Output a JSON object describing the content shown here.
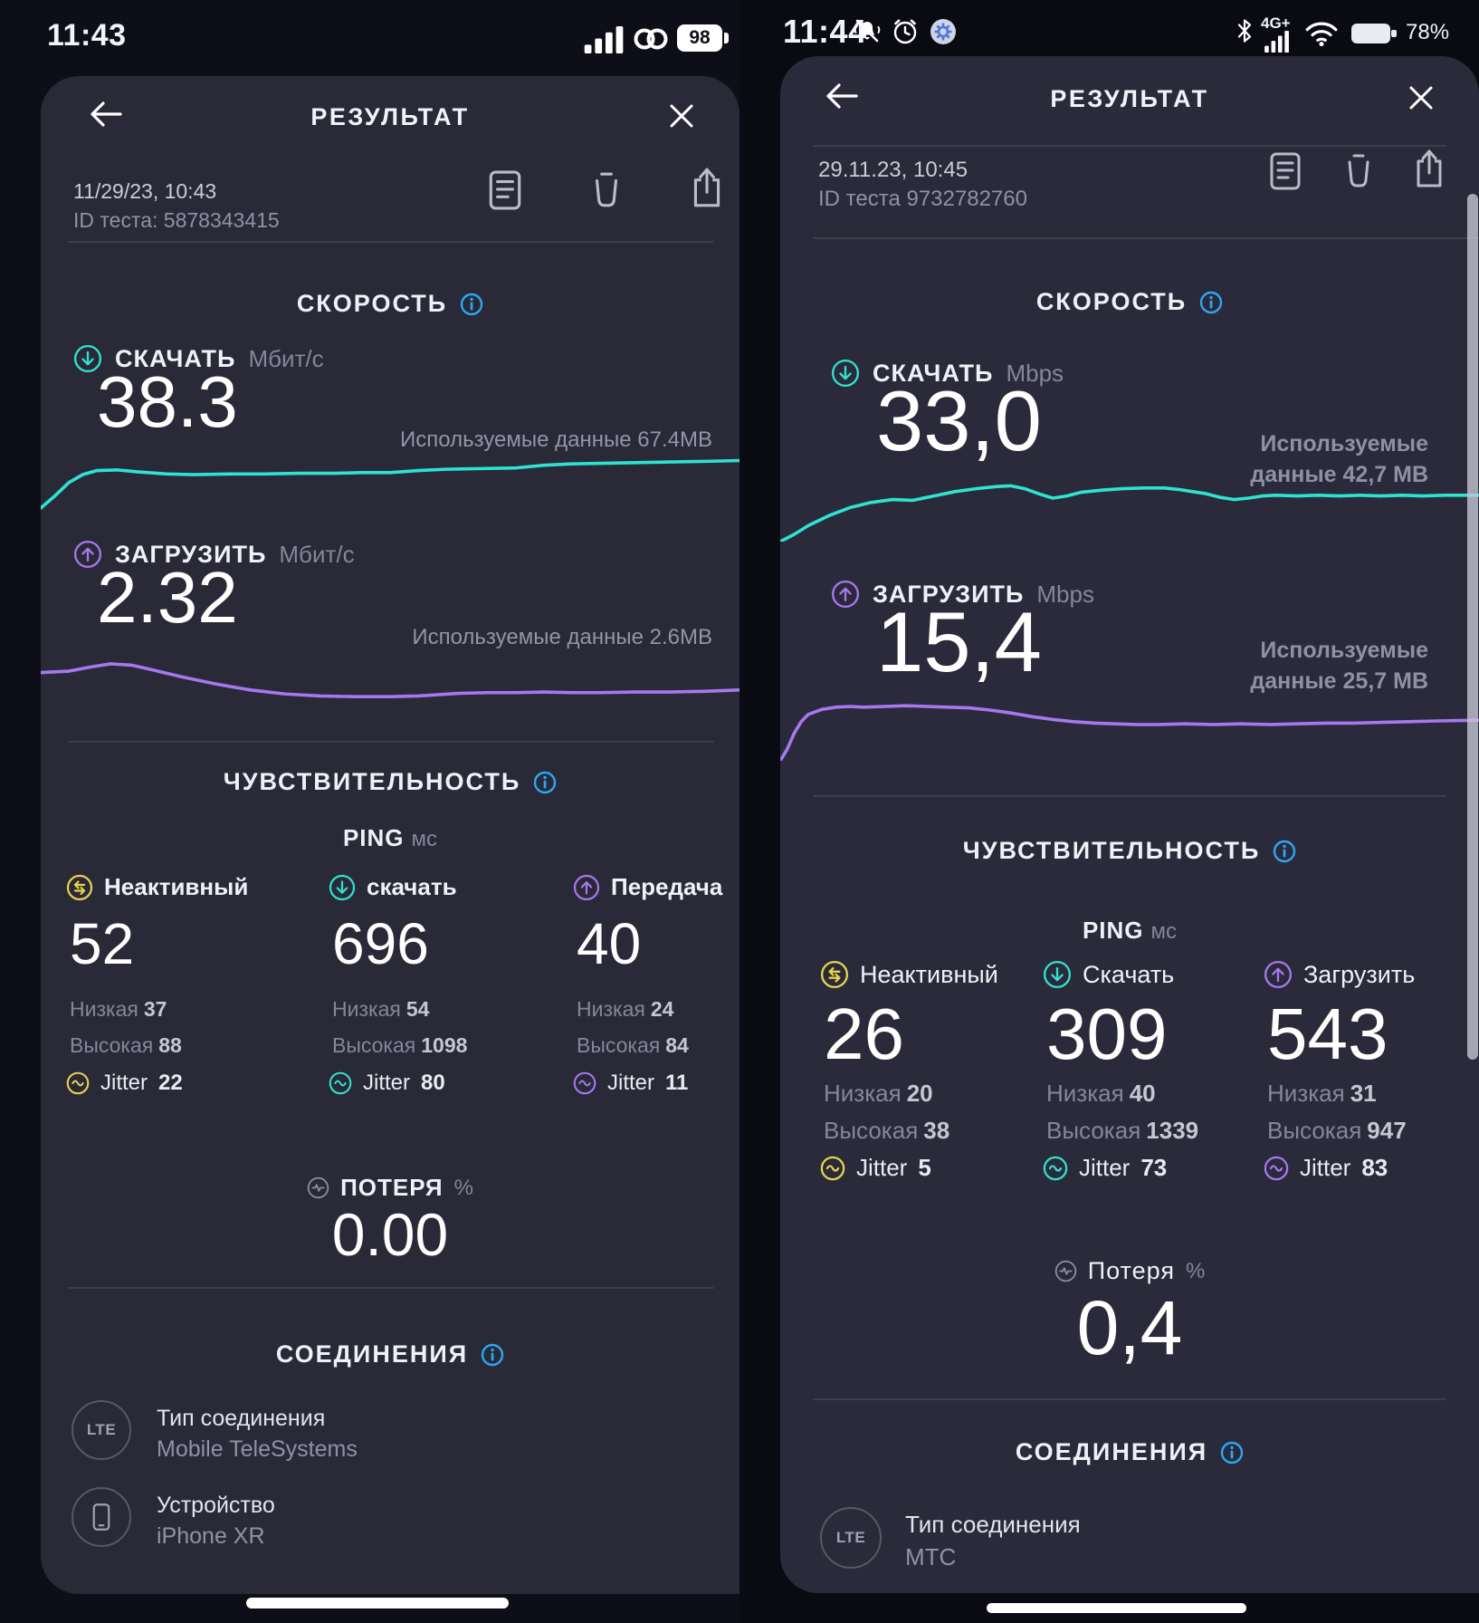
{
  "theme": {
    "teal": "#2ee3cf",
    "purple": "#a678ee",
    "yellow": "#e8d44d",
    "info_blue": "#2ba7f2",
    "card_bg_left": "#2a2938",
    "card_bg_right": "#2b2a3a"
  },
  "left": {
    "status": {
      "time": "11:43",
      "battery": "98"
    },
    "header": {
      "title": "РЕЗУЛЬТАТ"
    },
    "meta": {
      "date": "11/29/23, 10:43",
      "test_id": "ID теста: 5878343415"
    },
    "speed": {
      "title": "СКОРОСТЬ",
      "download": {
        "label": "СКАЧАТЬ",
        "unit": "Мбит/с",
        "value": "38.3",
        "used": "Используемые данные 67.4MB",
        "points": [
          [
            0,
            96
          ],
          [
            2,
            78
          ],
          [
            4,
            58
          ],
          [
            6,
            46
          ],
          [
            8,
            40
          ],
          [
            11,
            39
          ],
          [
            14,
            42
          ],
          [
            18,
            45
          ],
          [
            22,
            46
          ],
          [
            27,
            45
          ],
          [
            32,
            45
          ],
          [
            37,
            44
          ],
          [
            42,
            44
          ],
          [
            46,
            43
          ],
          [
            50,
            43
          ],
          [
            54,
            40
          ],
          [
            58,
            38
          ],
          [
            63,
            37
          ],
          [
            68,
            36
          ],
          [
            72,
            32
          ],
          [
            76,
            30
          ],
          [
            81,
            29
          ],
          [
            86,
            28
          ],
          [
            91,
            27
          ],
          [
            96,
            26
          ],
          [
            100,
            25
          ]
        ]
      },
      "upload": {
        "label": "ЗАГРУЗИТЬ",
        "unit": "Мбит/с",
        "value": "2.32",
        "used": "Используемые данные 2.6MB",
        "points": [
          [
            0,
            44
          ],
          [
            4,
            42
          ],
          [
            7,
            36
          ],
          [
            10,
            31
          ],
          [
            13,
            33
          ],
          [
            16,
            40
          ],
          [
            20,
            50
          ],
          [
            25,
            61
          ],
          [
            30,
            70
          ],
          [
            35,
            76
          ],
          [
            40,
            79
          ],
          [
            45,
            80
          ],
          [
            50,
            80
          ],
          [
            54,
            79
          ],
          [
            57,
            77
          ],
          [
            60,
            75
          ],
          [
            64,
            74
          ],
          [
            68,
            74
          ],
          [
            72,
            73
          ],
          [
            76,
            74
          ],
          [
            80,
            74
          ],
          [
            85,
            73
          ],
          [
            90,
            73
          ],
          [
            95,
            72
          ],
          [
            100,
            70
          ]
        ]
      }
    },
    "ping": {
      "title": "ЧУВСТВИТЕЛЬНОСТЬ",
      "label": "PING",
      "unit": "мс",
      "cols": [
        {
          "label": "Неактивный",
          "value": "52",
          "low_label": "Низкая",
          "low": "37",
          "high_label": "Высокая",
          "high": "88",
          "jitter_label": "Jitter",
          "jitter": "22"
        },
        {
          "label": "скачать",
          "value": "696",
          "low_label": "Низкая",
          "low": "54",
          "high_label": "Высокая",
          "high": "1098",
          "jitter_label": "Jitter",
          "jitter": "80"
        },
        {
          "label": "Передача",
          "value": "40",
          "low_label": "Низкая",
          "low": "24",
          "high_label": "Высокая",
          "high": "84",
          "jitter_label": "Jitter",
          "jitter": "11"
        }
      ]
    },
    "loss": {
      "label": "ПОТЕРЯ",
      "unit": "%",
      "value": "0.00"
    },
    "connections": {
      "title": "СОЕДИНЕНИЯ",
      "rows": [
        {
          "badge": "LTE",
          "label": "Тип соединения",
          "value": "Mobile TeleSystems"
        },
        {
          "badge": "device",
          "label": "Устройство",
          "value": "iPhone XR"
        }
      ]
    }
  },
  "right": {
    "status": {
      "time": "11:44",
      "network": "4G+",
      "battery": "78%"
    },
    "header": {
      "title": "РЕЗУЛЬТАТ"
    },
    "meta": {
      "date": "29.11.23, 10:45",
      "test_id": "ID теста 9732782760"
    },
    "speed": {
      "title": "СКОРОСТЬ",
      "download": {
        "label": "СКАЧАТЬ",
        "unit": "Mbps",
        "value": "33,0",
        "used_line1": "Используемые",
        "used_line2": "данные 42,7 МВ",
        "points": [
          [
            0,
            100
          ],
          [
            2,
            90
          ],
          [
            4,
            78
          ],
          [
            7,
            64
          ],
          [
            10,
            53
          ],
          [
            13,
            46
          ],
          [
            16,
            42
          ],
          [
            19,
            43
          ],
          [
            22,
            37
          ],
          [
            25,
            31
          ],
          [
            28,
            27
          ],
          [
            31,
            24
          ],
          [
            33,
            23
          ],
          [
            35,
            27
          ],
          [
            37,
            34
          ],
          [
            39,
            40
          ],
          [
            41,
            37
          ],
          [
            43,
            32
          ],
          [
            46,
            29
          ],
          [
            49,
            27
          ],
          [
            52,
            26
          ],
          [
            55,
            26
          ],
          [
            57,
            28
          ],
          [
            59,
            31
          ],
          [
            61,
            34
          ],
          [
            63,
            39
          ],
          [
            65,
            42
          ],
          [
            67,
            40
          ],
          [
            69,
            37
          ],
          [
            71,
            36
          ],
          [
            74,
            37
          ],
          [
            77,
            36
          ],
          [
            80,
            37
          ],
          [
            83,
            36
          ],
          [
            86,
            37
          ],
          [
            89,
            36
          ],
          [
            92,
            37
          ],
          [
            95,
            36
          ],
          [
            100,
            36
          ]
        ]
      },
      "upload": {
        "label": "ЗАГРУЗИТЬ",
        "unit": "Mbps",
        "value": "15,4",
        "used_line1": "Используемые",
        "used_line2": "данные 25,7 МВ",
        "points": [
          [
            0,
            100
          ],
          [
            1,
            84
          ],
          [
            2,
            62
          ],
          [
            3,
            46
          ],
          [
            4,
            36
          ],
          [
            6,
            29
          ],
          [
            8,
            26
          ],
          [
            10,
            25
          ],
          [
            12,
            26
          ],
          [
            15,
            25
          ],
          [
            18,
            24
          ],
          [
            21,
            25
          ],
          [
            24,
            26
          ],
          [
            27,
            27
          ],
          [
            30,
            30
          ],
          [
            33,
            34
          ],
          [
            36,
            39
          ],
          [
            39,
            43
          ],
          [
            42,
            46
          ],
          [
            45,
            48
          ],
          [
            48,
            49
          ],
          [
            51,
            50
          ],
          [
            54,
            50
          ],
          [
            58,
            49
          ],
          [
            62,
            50
          ],
          [
            66,
            49
          ],
          [
            70,
            50
          ],
          [
            74,
            49
          ],
          [
            78,
            48
          ],
          [
            82,
            48
          ],
          [
            86,
            47
          ],
          [
            90,
            46
          ],
          [
            94,
            45
          ],
          [
            100,
            44
          ]
        ]
      }
    },
    "ping": {
      "title": "ЧУВСТВИТЕЛЬНОСТЬ",
      "label": "PING",
      "unit": "мс",
      "cols": [
        {
          "label": "Неактивный",
          "value": "26",
          "low_label": "Низкая",
          "low": "20",
          "high_label": "Высокая",
          "high": "38",
          "jitter_label": "Jitter",
          "jitter": "5"
        },
        {
          "label": "Скачать",
          "value": "309",
          "low_label": "Низкая",
          "low": "40",
          "high_label": "Высокая",
          "high": "1339",
          "jitter_label": "Jitter",
          "jitter": "73"
        },
        {
          "label": "Загрузить",
          "value": "543",
          "low_label": "Низкая",
          "low": "31",
          "high_label": "Высокая",
          "high": "947",
          "jitter_label": "Jitter",
          "jitter": "83"
        }
      ]
    },
    "loss": {
      "label": "Потеря",
      "unit": "%",
      "value": "0,4"
    },
    "connections": {
      "title": "СОЕДИНЕНИЯ",
      "rows": [
        {
          "badge": "LTE",
          "label": "Тип соединения",
          "value": "МТС"
        }
      ]
    }
  }
}
